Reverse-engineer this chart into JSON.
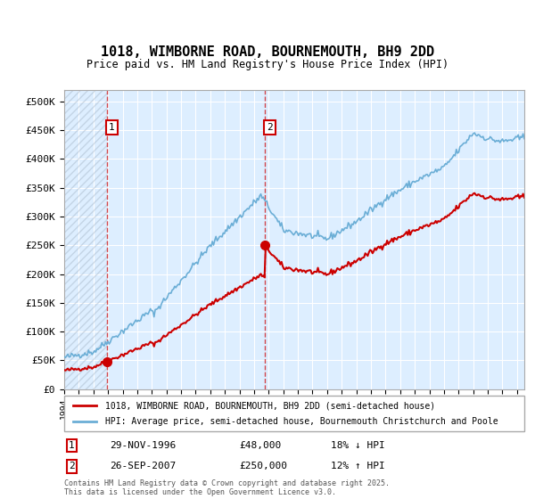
{
  "title": "1018, WIMBORNE ROAD, BOURNEMOUTH, BH9 2DD",
  "subtitle": "Price paid vs. HM Land Registry's House Price Index (HPI)",
  "legend_line1": "1018, WIMBORNE ROAD, BOURNEMOUTH, BH9 2DD (semi-detached house)",
  "legend_line2": "HPI: Average price, semi-detached house, Bournemouth Christchurch and Poole",
  "footer": "Contains HM Land Registry data © Crown copyright and database right 2025.\nThis data is licensed under the Open Government Licence v3.0.",
  "annotation1_date": "29-NOV-1996",
  "annotation1_price": "£48,000",
  "annotation1_hpi": "18% ↓ HPI",
  "annotation2_date": "26-SEP-2007",
  "annotation2_price": "£250,000",
  "annotation2_hpi": "12% ↑ HPI",
  "hpi_color": "#6baed6",
  "price_color": "#cc0000",
  "background_color": "#ddeeff",
  "ylim": [
    0,
    520000
  ],
  "yticks": [
    0,
    50000,
    100000,
    150000,
    200000,
    250000,
    300000,
    350000,
    400000,
    450000,
    500000
  ],
  "ytick_labels": [
    "£0",
    "£50K",
    "£100K",
    "£150K",
    "£200K",
    "£250K",
    "£300K",
    "£350K",
    "£400K",
    "£450K",
    "£500K"
  ],
  "xmin": 1994,
  "xmax": 2025.5,
  "sale1_x": 1996.9,
  "sale1_y": 48000,
  "sale2_x": 2007.73,
  "sale2_y": 250000
}
